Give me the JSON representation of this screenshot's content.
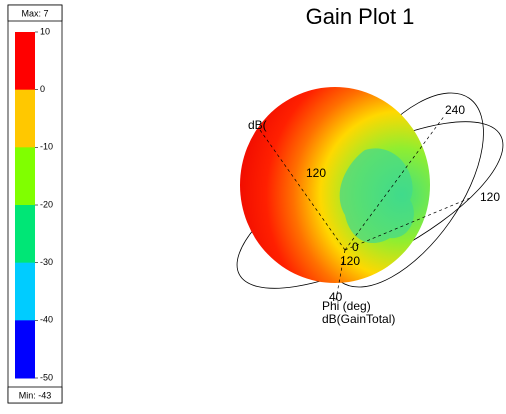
{
  "title": "Gain Plot 1",
  "legend": {
    "max_label": "Max: 7",
    "min_label": "Min: -43",
    "ticks": [
      10,
      0,
      -10,
      -20,
      -30,
      -40,
      -50
    ],
    "colors": [
      "#ff0000",
      "#ffc800",
      "#80ff00",
      "#00e676",
      "#00ccff",
      "#0000ff"
    ]
  },
  "annotations": [
    "240",
    "120",
    "120",
    "dB(",
    "120",
    "0",
    "40",
    "Phi (deg)",
    "dB(GainTotal)"
  ]
}
